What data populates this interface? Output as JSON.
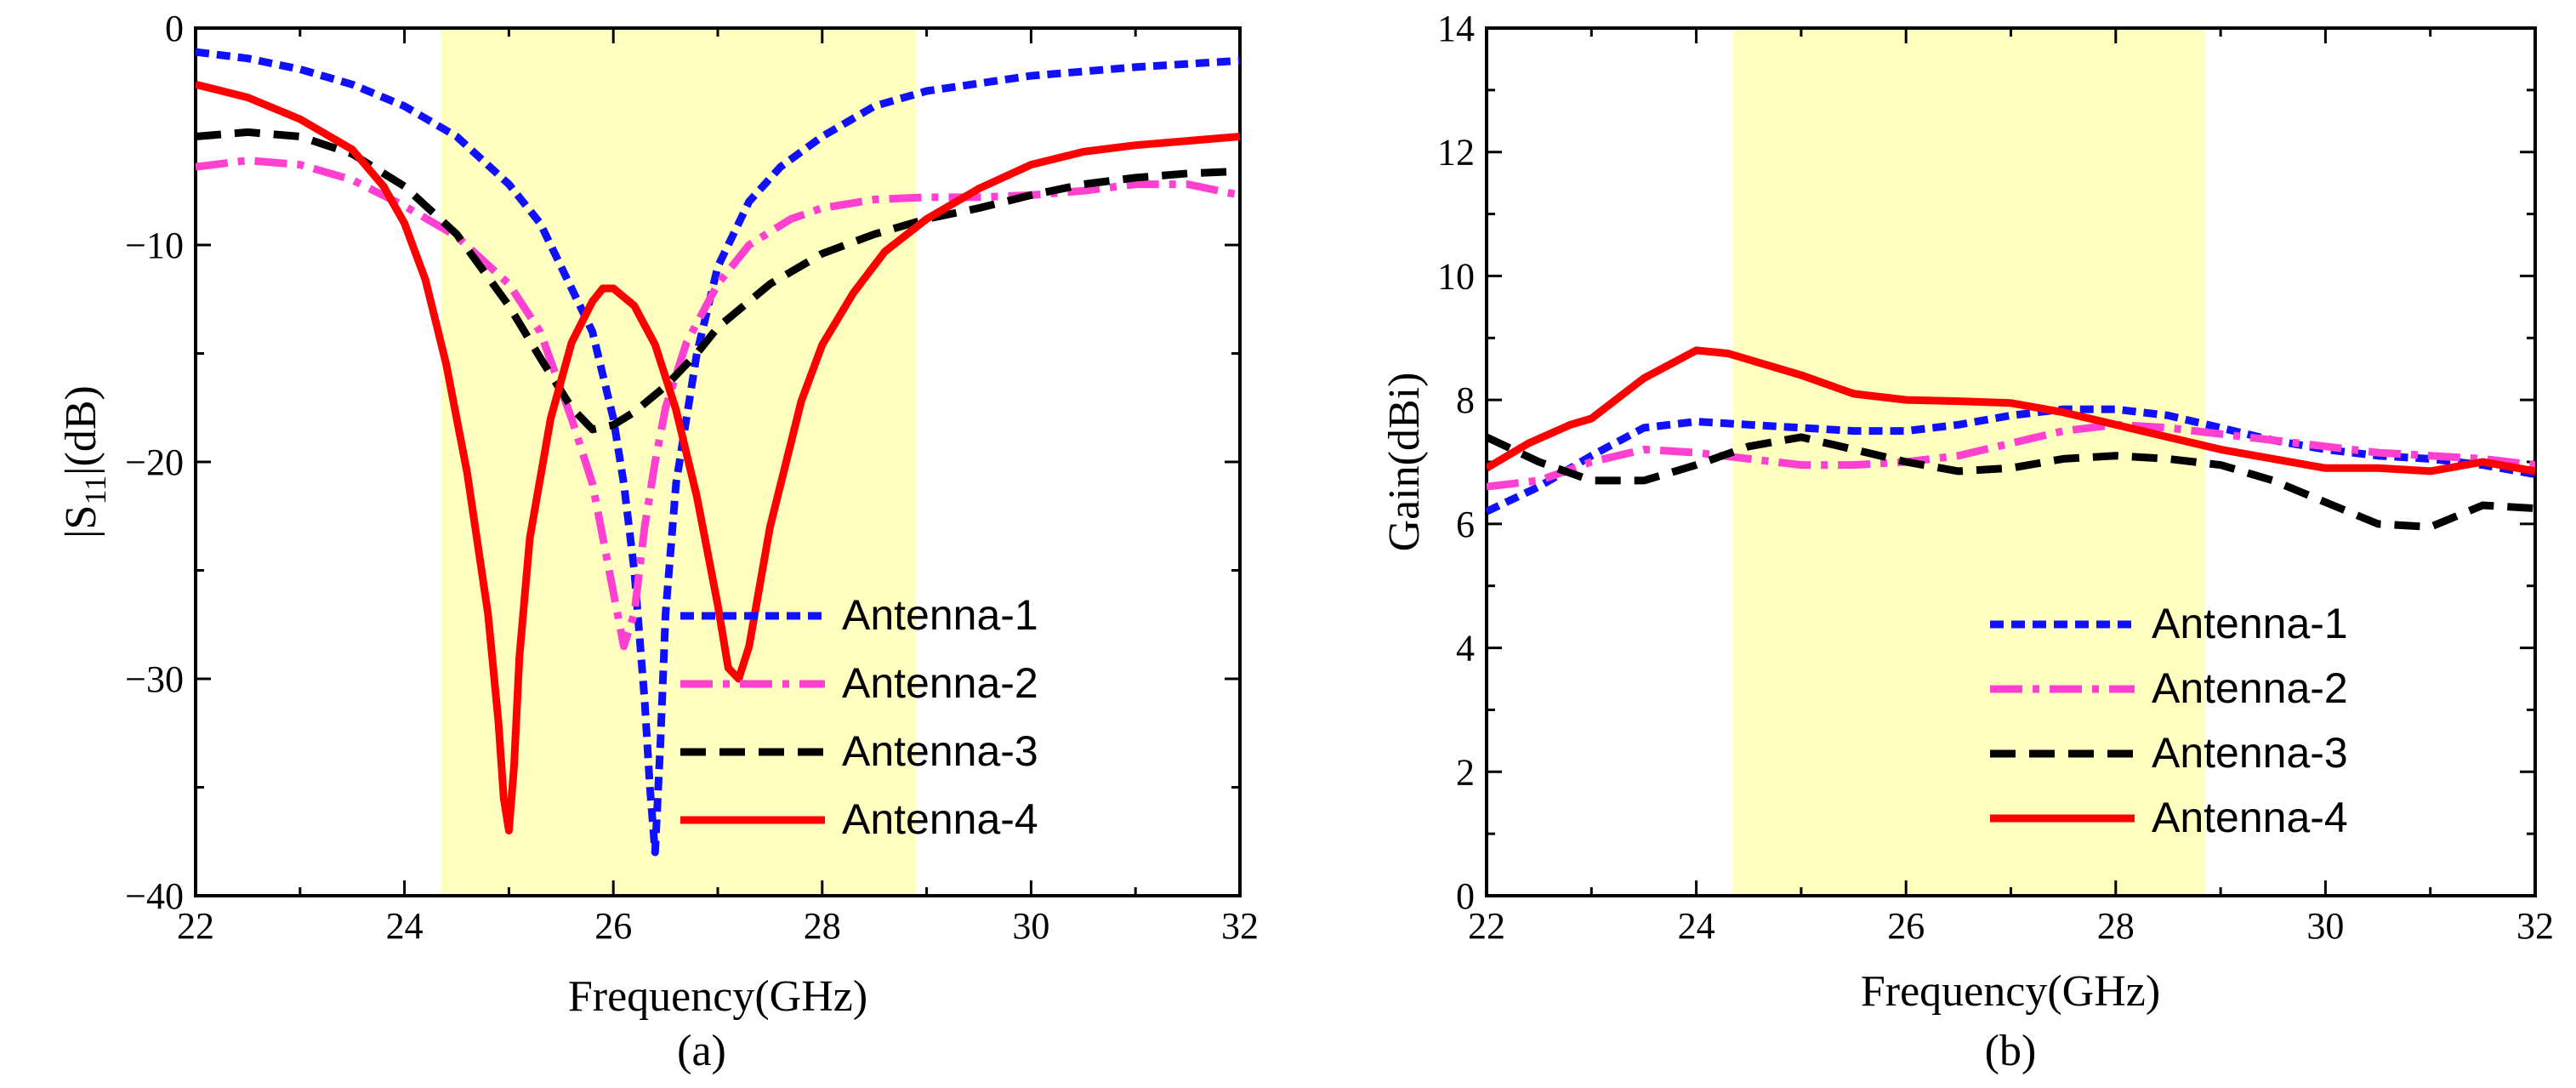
{
  "colors": {
    "band": "#ffffc0",
    "Antenna-1": "#1010ff",
    "Antenna-2": "#ff40d0",
    "Antenna-3": "#000000",
    "Antenna-4": "#ff0000"
  },
  "chart_data": [
    {
      "type": "line",
      "caption": "(a)",
      "title": "",
      "xlabel": "Frequency(GHz)",
      "ylabel_main": "|S",
      "ylabel_sub": "11",
      "ylabel_tail": "|(dB)",
      "xlim": [
        22,
        32
      ],
      "ylim": [
        -40,
        0
      ],
      "xticks": [
        22,
        24,
        26,
        28,
        30,
        32
      ],
      "yticks": [
        0,
        -10,
        -20,
        -30,
        -40
      ],
      "ytick_labels": [
        "0",
        "−10",
        "−20",
        "−30",
        "−40"
      ],
      "band": [
        24.35,
        28.9
      ],
      "legend_position": "bottom-right",
      "series": [
        {
          "name": "Antenna-1",
          "style": "dotted",
          "x": [
            22,
            22.5,
            23,
            23.5,
            24,
            24.5,
            25,
            25.3,
            25.6,
            25.8,
            26,
            26.1,
            26.2,
            26.3,
            26.35,
            26.4,
            26.45,
            26.5,
            26.6,
            26.8,
            27,
            27.3,
            27.6,
            28,
            28.5,
            29,
            30,
            31,
            32
          ],
          "y": [
            -1.1,
            -1.4,
            -1.9,
            -2.6,
            -3.6,
            -5,
            -7.2,
            -9,
            -12,
            -14,
            -18,
            -21,
            -25,
            -31,
            -35,
            -38,
            -33,
            -27,
            -21,
            -15,
            -11,
            -8,
            -6.4,
            -5,
            -3.6,
            -2.9,
            -2.2,
            -1.8,
            -1.5
          ]
        },
        {
          "name": "Antenna-2",
          "style": "dashdot",
          "x": [
            22,
            22.5,
            23,
            23.5,
            24,
            24.5,
            25,
            25.3,
            25.6,
            25.8,
            26,
            26.1,
            26.2,
            26.3,
            26.4,
            26.5,
            26.7,
            27,
            27.3,
            27.7,
            28,
            28.5,
            29,
            29.5,
            30,
            30.5,
            31,
            31.5,
            32
          ],
          "y": [
            -6.4,
            -6.1,
            -6.3,
            -7,
            -8.2,
            -9.6,
            -11.8,
            -14,
            -18,
            -21,
            -26,
            -28.5,
            -27,
            -23,
            -20,
            -17.5,
            -14.5,
            -11.8,
            -10,
            -8.8,
            -8.3,
            -7.9,
            -7.8,
            -7.8,
            -7.7,
            -7.5,
            -7.2,
            -7.2,
            -7.7
          ]
        },
        {
          "name": "Antenna-3",
          "style": "dashed",
          "x": [
            22,
            22.5,
            23,
            23.5,
            24,
            24.5,
            25,
            25.3,
            25.6,
            25.8,
            26,
            26.2,
            26.5,
            26.8,
            27,
            27.5,
            28,
            28.5,
            29,
            29.5,
            30,
            30.5,
            31,
            31.5,
            32
          ],
          "y": [
            -5,
            -4.8,
            -5,
            -5.8,
            -7.3,
            -9.5,
            -12.8,
            -15.2,
            -17.5,
            -18.5,
            -18.3,
            -17.7,
            -16.5,
            -15,
            -13.8,
            -11.8,
            -10.4,
            -9.5,
            -8.8,
            -8.3,
            -7.7,
            -7.2,
            -6.9,
            -6.7,
            -6.6
          ]
        },
        {
          "name": "Antenna-4",
          "style": "solid",
          "x": [
            22,
            22.5,
            23,
            23.5,
            23.8,
            24,
            24.2,
            24.4,
            24.6,
            24.8,
            24.9,
            24.95,
            25,
            25.05,
            25.1,
            25.2,
            25.4,
            25.6,
            25.8,
            25.9,
            26,
            26.2,
            26.4,
            26.6,
            26.8,
            27,
            27.1,
            27.2,
            27.3,
            27.5,
            27.8,
            28,
            28.3,
            28.6,
            29,
            29.5,
            30,
            30.5,
            31,
            31.5,
            32
          ],
          "y": [
            -2.6,
            -3.2,
            -4.2,
            -5.6,
            -7.3,
            -9,
            -11.6,
            -15.5,
            -20.5,
            -27,
            -32,
            -35.5,
            -37,
            -34,
            -29,
            -23.5,
            -18,
            -14.5,
            -12.6,
            -12,
            -12,
            -12.8,
            -14.6,
            -17.6,
            -21.6,
            -26.6,
            -29.5,
            -30,
            -28.5,
            -23,
            -17.2,
            -14.6,
            -12.2,
            -10.3,
            -8.8,
            -7.4,
            -6.3,
            -5.7,
            -5.4,
            -5.2,
            -5
          ]
        }
      ]
    },
    {
      "type": "line",
      "caption": "(b)",
      "title": "",
      "xlabel": "Frequency(GHz)",
      "ylabel": "Gain(dBi)",
      "xlim": [
        22,
        32
      ],
      "ylim": [
        0,
        14
      ],
      "xticks": [
        22,
        24,
        26,
        28,
        30,
        32
      ],
      "yticks": [
        0,
        2,
        4,
        6,
        8,
        10,
        12,
        14
      ],
      "ytick_labels": [
        "0",
        "2",
        "4",
        "6",
        "8",
        "10",
        "12",
        "14"
      ],
      "band": [
        24.35,
        28.85
      ],
      "legend_position": "bottom-right",
      "series": [
        {
          "name": "Antenna-1",
          "style": "dotted",
          "x": [
            22,
            22.5,
            23,
            23.5,
            24,
            24.5,
            25,
            25.5,
            26,
            26.5,
            27,
            27.5,
            28,
            28.5,
            29,
            29.5,
            30,
            30.5,
            31,
            31.5,
            32
          ],
          "y": [
            6.2,
            6.6,
            7.1,
            7.55,
            7.65,
            7.6,
            7.55,
            7.5,
            7.5,
            7.6,
            7.75,
            7.85,
            7.85,
            7.75,
            7.55,
            7.35,
            7.2,
            7.1,
            7.05,
            6.95,
            6.8
          ]
        },
        {
          "name": "Antenna-2",
          "style": "dashdot",
          "x": [
            22,
            22.5,
            23,
            23.5,
            24,
            24.5,
            25,
            25.5,
            26,
            26.5,
            27,
            27.5,
            28,
            28.5,
            29,
            29.5,
            30,
            30.5,
            31,
            31.5,
            32
          ],
          "y": [
            6.6,
            6.7,
            7,
            7.2,
            7.15,
            7.05,
            6.95,
            6.95,
            7,
            7.1,
            7.3,
            7.5,
            7.6,
            7.55,
            7.45,
            7.35,
            7.25,
            7.15,
            7.1,
            7.05,
            6.95
          ]
        },
        {
          "name": "Antenna-3",
          "style": "dashed",
          "x": [
            22,
            22.5,
            23,
            23.5,
            24,
            24.5,
            25,
            25.5,
            26,
            26.5,
            27,
            27.5,
            28,
            28.5,
            29,
            29.5,
            30,
            30.5,
            31,
            31.5,
            32
          ],
          "y": [
            7.4,
            7,
            6.7,
            6.7,
            6.95,
            7.25,
            7.4,
            7.2,
            7,
            6.85,
            6.9,
            7.05,
            7.1,
            7.05,
            6.95,
            6.7,
            6.35,
            6,
            5.95,
            6.3,
            6.25
          ]
        },
        {
          "name": "Antenna-4",
          "style": "solid",
          "x": [
            22,
            22.4,
            22.8,
            23,
            23.5,
            24,
            24.3,
            24.6,
            25,
            25.5,
            26,
            26.5,
            27,
            27.5,
            28,
            28.5,
            29,
            29.5,
            30,
            30.5,
            31,
            31.5,
            32
          ],
          "y": [
            6.9,
            7.3,
            7.6,
            7.7,
            8.35,
            8.8,
            8.75,
            8.6,
            8.4,
            8.1,
            8,
            7.98,
            7.95,
            7.8,
            7.6,
            7.4,
            7.2,
            7.05,
            6.9,
            6.9,
            6.85,
            7,
            6.85
          ]
        }
      ]
    }
  ]
}
